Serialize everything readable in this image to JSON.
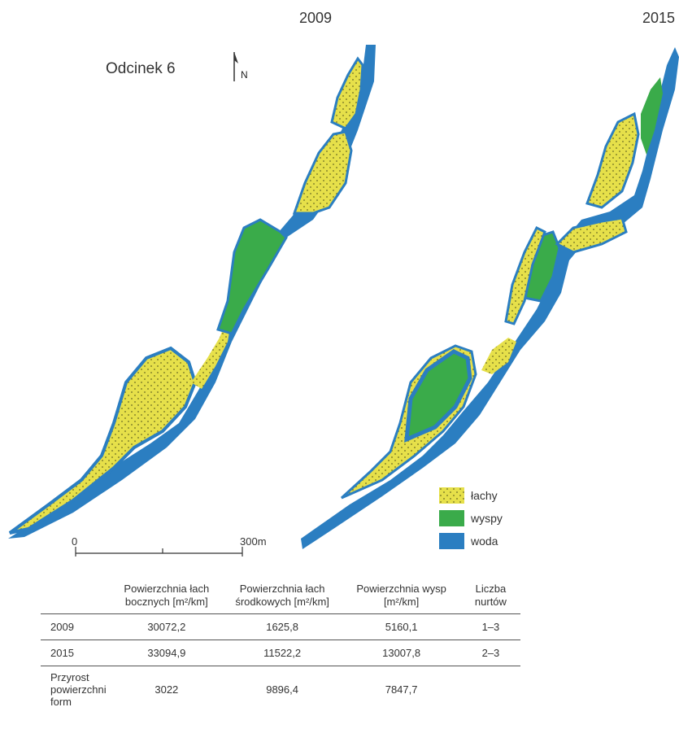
{
  "title": "Odcinek 6",
  "north_label": "N",
  "years": {
    "left": "2009",
    "right": "2015"
  },
  "legend": [
    {
      "label": "łachy",
      "color": "#e6e04a",
      "pattern": "dots"
    },
    {
      "label": "wyspy",
      "color": "#3aab4a",
      "pattern": "solid"
    },
    {
      "label": "woda",
      "color": "#2b7ec1",
      "pattern": "solid"
    }
  ],
  "scale_bar": {
    "start_label": "0",
    "end_label": "300m"
  },
  "table": {
    "headers": [
      "",
      "Powierzchnia łach bocznych [m²/km]",
      "Powierzchnia łach środkowych [m²/km]",
      "Powierzchnia wysp [m²/km]",
      "Liczba nurtów"
    ],
    "rows": [
      {
        "label": "2009",
        "values": [
          "30072,2",
          "1625,8",
          "5160,1",
          "1–3"
        ]
      },
      {
        "label": "2015",
        "values": [
          "33094,9",
          "11522,2",
          "13007,8",
          "2–3"
        ]
      },
      {
        "label": "Przyrost powierzchni form",
        "values": [
          "3022",
          "9896,4",
          "7847,7",
          ""
        ]
      }
    ]
  }
}
